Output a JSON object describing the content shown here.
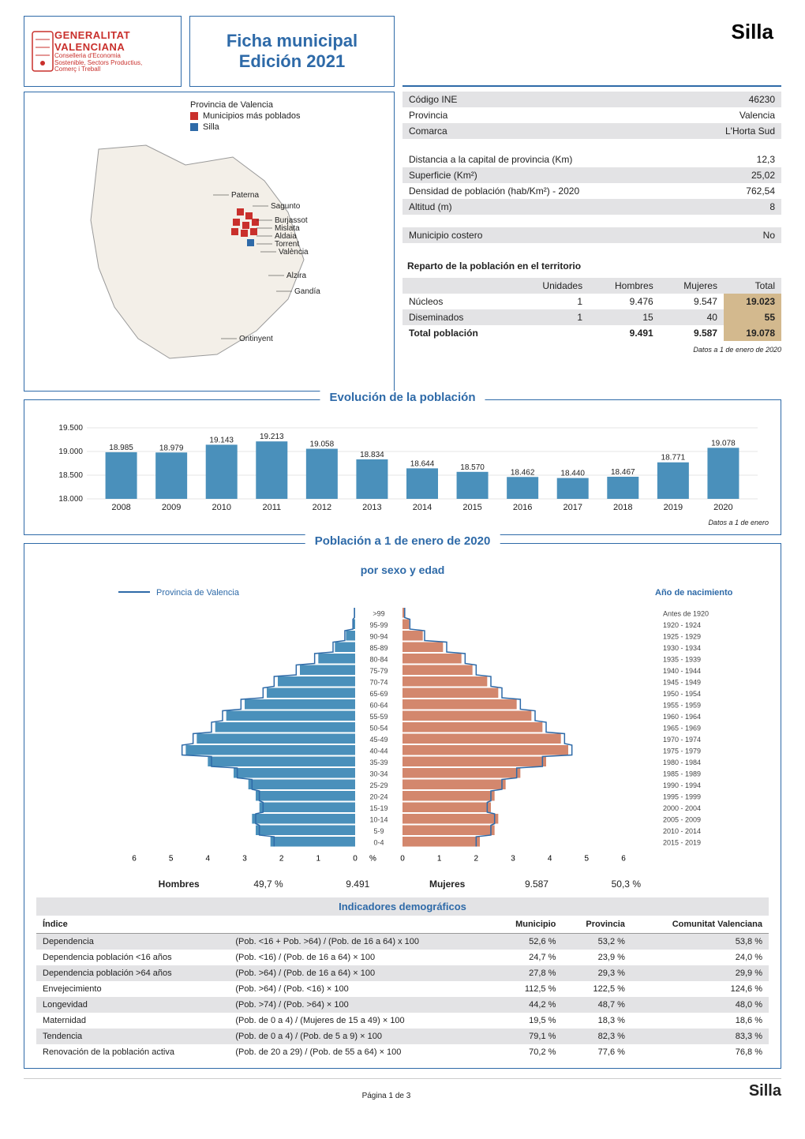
{
  "header": {
    "municipality": "Silla",
    "title_line1": "Ficha municipal",
    "title_line2": "Edición 2021",
    "gv_line1": "GENERALITAT",
    "gv_line2": "VALENCIANA",
    "gv_sub1": "Conselleria d'Economia",
    "gv_sub2": "Sostenible, Sectors Productius,",
    "gv_sub3": "Comerç i Treball"
  },
  "map": {
    "legend_province": "Provincia de Valencia",
    "legend_mas_poblados": "Municipios más poblados",
    "legend_silla": "Silla",
    "color_mas_poblados": "#c9302c",
    "color_silla": "#2e6aa8",
    "cities": [
      "Paterna",
      "Sagunto",
      "Burjassot",
      "Mislata",
      "Aldaia",
      "Torrent",
      "València",
      "Alzira",
      "Gandía",
      "Ontinyent"
    ]
  },
  "info": {
    "rows1": [
      {
        "label": "Código INE",
        "value": "46230",
        "shade": true
      },
      {
        "label": "Provincia",
        "value": "Valencia",
        "shade": false
      },
      {
        "label": "Comarca",
        "value": "L'Horta Sud",
        "shade": true
      }
    ],
    "rows2": [
      {
        "label": "Distancia a la capital de provincia (Km)",
        "value": "12,3",
        "shade": false
      },
      {
        "label": "Superficie (Km²)",
        "value": "25,02",
        "shade": true
      },
      {
        "label": "Densidad de población (hab/Km²) - 2020",
        "value": "762,54",
        "shade": false
      },
      {
        "label": "Altitud (m)",
        "value": "8",
        "shade": true
      }
    ],
    "rows3": [
      {
        "label": "Municipio costero",
        "value": "No",
        "shade": true
      }
    ]
  },
  "reparto": {
    "title": "Reparto de la población en el territorio",
    "headers": [
      "",
      "Unidades",
      "Hombres",
      "Mujeres",
      "Total"
    ],
    "rows": [
      {
        "cells": [
          "Núcleos",
          "1",
          "9.476",
          "9.547",
          "19.023"
        ],
        "shade": false
      },
      {
        "cells": [
          "Diseminados",
          "1",
          "15",
          "40",
          "55"
        ],
        "shade": true
      },
      {
        "cells": [
          "Total población",
          "",
          "9.491",
          "9.587",
          "19.078"
        ],
        "shade": false,
        "bold": true
      }
    ],
    "note": "Datos a 1 de enero de 2020"
  },
  "evolution": {
    "title": "Evolución de la población",
    "note": "Datos a 1 de enero",
    "ylim": [
      18000,
      19500
    ],
    "yticks": [
      18000,
      18500,
      19000,
      19500
    ],
    "ytick_labels": [
      "18.000",
      "18.500",
      "19.000",
      "19.500"
    ],
    "bar_color": "#4a90bb",
    "years": [
      "2008",
      "2009",
      "2010",
      "2011",
      "2012",
      "2013",
      "2014",
      "2015",
      "2016",
      "2017",
      "2018",
      "2019",
      "2020"
    ],
    "values": [
      18985,
      18979,
      19143,
      19213,
      19058,
      18834,
      18644,
      18570,
      18462,
      18440,
      18467,
      18771,
      19078
    ],
    "labels": [
      "18.985",
      "18.979",
      "19.143",
      "19.213",
      "19.058",
      "18.834",
      "18.644",
      "18.570",
      "18.462",
      "18.440",
      "18.467",
      "18.771",
      "19.078"
    ]
  },
  "pyramid": {
    "title": "Población a 1 de enero de 2020",
    "subtitle": "por sexo y edad",
    "legend_line": "Provincia de Valencia",
    "birth_title": "Año de nacimiento",
    "x_label": "%",
    "groups": [
      ">99",
      "95-99",
      "90-94",
      "85-89",
      "80-84",
      "75-79",
      "70-74",
      "65-69",
      "60-64",
      "55-59",
      "50-54",
      "45-49",
      "40-44",
      "35-39",
      "30-34",
      "25-29",
      "20-24",
      "15-19",
      "10-14",
      "5-9",
      "0-4"
    ],
    "birth_years": [
      "Antes de 1920",
      "1920 - 1924",
      "1925 - 1929",
      "1930 - 1934",
      "1935 - 1939",
      "1940 - 1944",
      "1945 - 1949",
      "1950 - 1954",
      "1955 - 1959",
      "1960 - 1964",
      "1965 - 1969",
      "1970 - 1974",
      "1975 - 1979",
      "1980 - 1984",
      "1985 - 1989",
      "1990 - 1994",
      "1995 - 1999",
      "2000 - 2004",
      "2005 - 2009",
      "2010 - 2014",
      "2015 - 2019"
    ],
    "males": [
      0.02,
      0.05,
      0.25,
      0.55,
      1.0,
      1.5,
      2.1,
      2.4,
      3.0,
      3.5,
      3.8,
      4.3,
      4.6,
      4.0,
      3.3,
      2.9,
      2.7,
      2.6,
      2.8,
      2.7,
      2.3
    ],
    "females": [
      0.05,
      0.18,
      0.55,
      1.1,
      1.6,
      1.9,
      2.3,
      2.6,
      3.1,
      3.5,
      3.8,
      4.3,
      4.5,
      3.9,
      3.2,
      2.8,
      2.5,
      2.4,
      2.6,
      2.5,
      2.1
    ],
    "prov_m": [
      0.02,
      0.06,
      0.28,
      0.6,
      1.1,
      1.6,
      2.2,
      2.5,
      3.1,
      3.6,
      3.9,
      4.4,
      4.7,
      3.9,
      3.2,
      2.8,
      2.6,
      2.5,
      2.7,
      2.6,
      2.2
    ],
    "prov_f": [
      0.06,
      0.2,
      0.6,
      1.2,
      1.7,
      2.0,
      2.4,
      2.7,
      3.2,
      3.6,
      3.9,
      4.4,
      4.6,
      3.8,
      3.1,
      2.7,
      2.4,
      2.3,
      2.5,
      2.4,
      2.0
    ],
    "xmax": 6,
    "xticks": [
      0,
      1,
      2,
      3,
      4,
      5,
      6
    ],
    "color_m": "#4a90bb",
    "color_f": "#d3876d",
    "footer": {
      "hombres_label": "Hombres",
      "hombres_pct": "49,7 %",
      "hombres_n": "9.491",
      "mujeres_label": "Mujeres",
      "mujeres_n": "9.587",
      "mujeres_pct": "50,3 %"
    }
  },
  "indicators": {
    "title": "Indicadores demográficos",
    "headers": [
      "Índice",
      "",
      "Municipio",
      "Provincia",
      "Comunitat Valenciana"
    ],
    "rows": [
      {
        "cells": [
          "Dependencia",
          "(Pob. <16 + Pob. >64) / (Pob. de 16 a 64) x 100",
          "52,6 %",
          "53,2 %",
          "53,8 %"
        ],
        "alt": true
      },
      {
        "cells": [
          "Dependencia población <16 años",
          "(Pob. <16) / (Pob. de 16 a 64) × 100",
          "24,7 %",
          "23,9 %",
          "24,0 %"
        ],
        "alt": false
      },
      {
        "cells": [
          "Dependencia población >64 años",
          "(Pob. >64) / (Pob. de 16 a 64) × 100",
          "27,8 %",
          "29,3 %",
          "29,9 %"
        ],
        "alt": true
      },
      {
        "cells": [
          "Envejecimiento",
          "(Pob. >64) / (Pob. <16) × 100",
          "112,5 %",
          "122,5 %",
          "124,6 %"
        ],
        "alt": false
      },
      {
        "cells": [
          "Longevidad",
          "(Pob. >74) / (Pob. >64) × 100",
          "44,2 %",
          "48,7 %",
          "48,0 %"
        ],
        "alt": true
      },
      {
        "cells": [
          "Maternidad",
          "(Pob. de 0 a 4) / (Mujeres de 15 a 49) × 100",
          "19,5 %",
          "18,3 %",
          "18,6 %"
        ],
        "alt": false
      },
      {
        "cells": [
          "Tendencia",
          "(Pob. de 0 a 4) / (Pob. de 5 a 9) × 100",
          "79,1 %",
          "82,3 %",
          "83,3 %"
        ],
        "alt": true
      },
      {
        "cells": [
          "Renovación de la población activa",
          "(Pob. de 20 a 29) / (Pob. de 55 a 64) × 100",
          "70,2 %",
          "77,6 %",
          "76,8 %"
        ],
        "alt": false
      }
    ]
  },
  "footer": {
    "page": "Página 1 de 3",
    "muni": "Silla"
  }
}
